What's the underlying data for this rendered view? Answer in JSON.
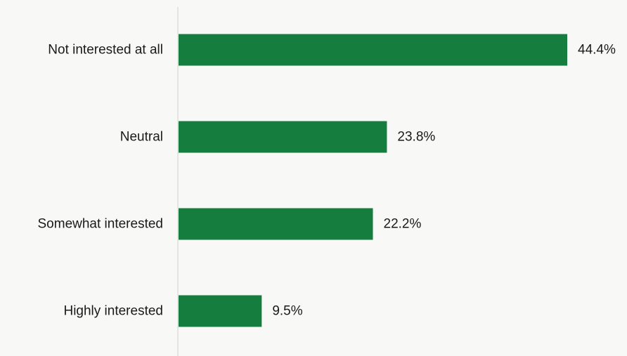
{
  "chart_data": {
    "type": "bar",
    "orientation": "horizontal",
    "categories": [
      "Not interested at all",
      "Neutral",
      "Somewhat interested",
      "Highly interested"
    ],
    "values": [
      44.4,
      23.8,
      22.2,
      9.5
    ],
    "value_labels": [
      "44.4%",
      "23.8%",
      "22.2%",
      "9.5%"
    ],
    "unit": "%",
    "title": "",
    "xlabel": "",
    "ylabel": "",
    "xlim": [
      0,
      44.4
    ],
    "grid": false,
    "legend": "none",
    "bar_color": "#157d3e",
    "axis_color": "#d0d0d0",
    "background": "#f8f8f6"
  }
}
